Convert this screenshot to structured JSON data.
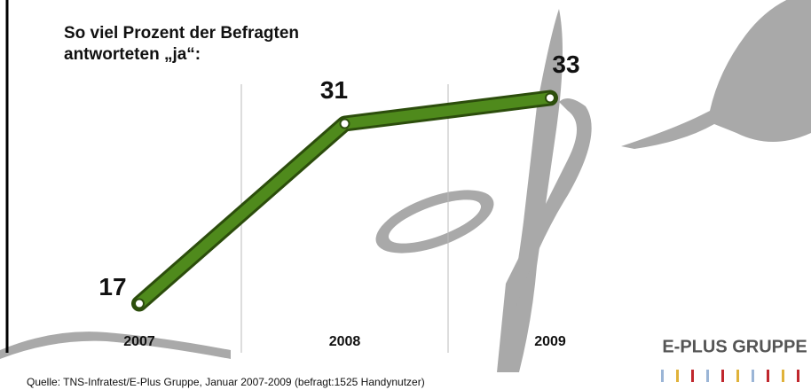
{
  "chart_data": {
    "type": "line",
    "title": "So viel Prozent der Befragten antworteten „ja“:",
    "categories": [
      "2007",
      "2008",
      "2009"
    ],
    "values": [
      17,
      31,
      33
    ],
    "color": "#4f8a1c",
    "source": "Quelle: TNS-Infratest/E-Plus Gruppe, Januar 2007-2009 (befragt:1525 Handynutzer)"
  },
  "logo": "E-PLUS GRUPPE"
}
